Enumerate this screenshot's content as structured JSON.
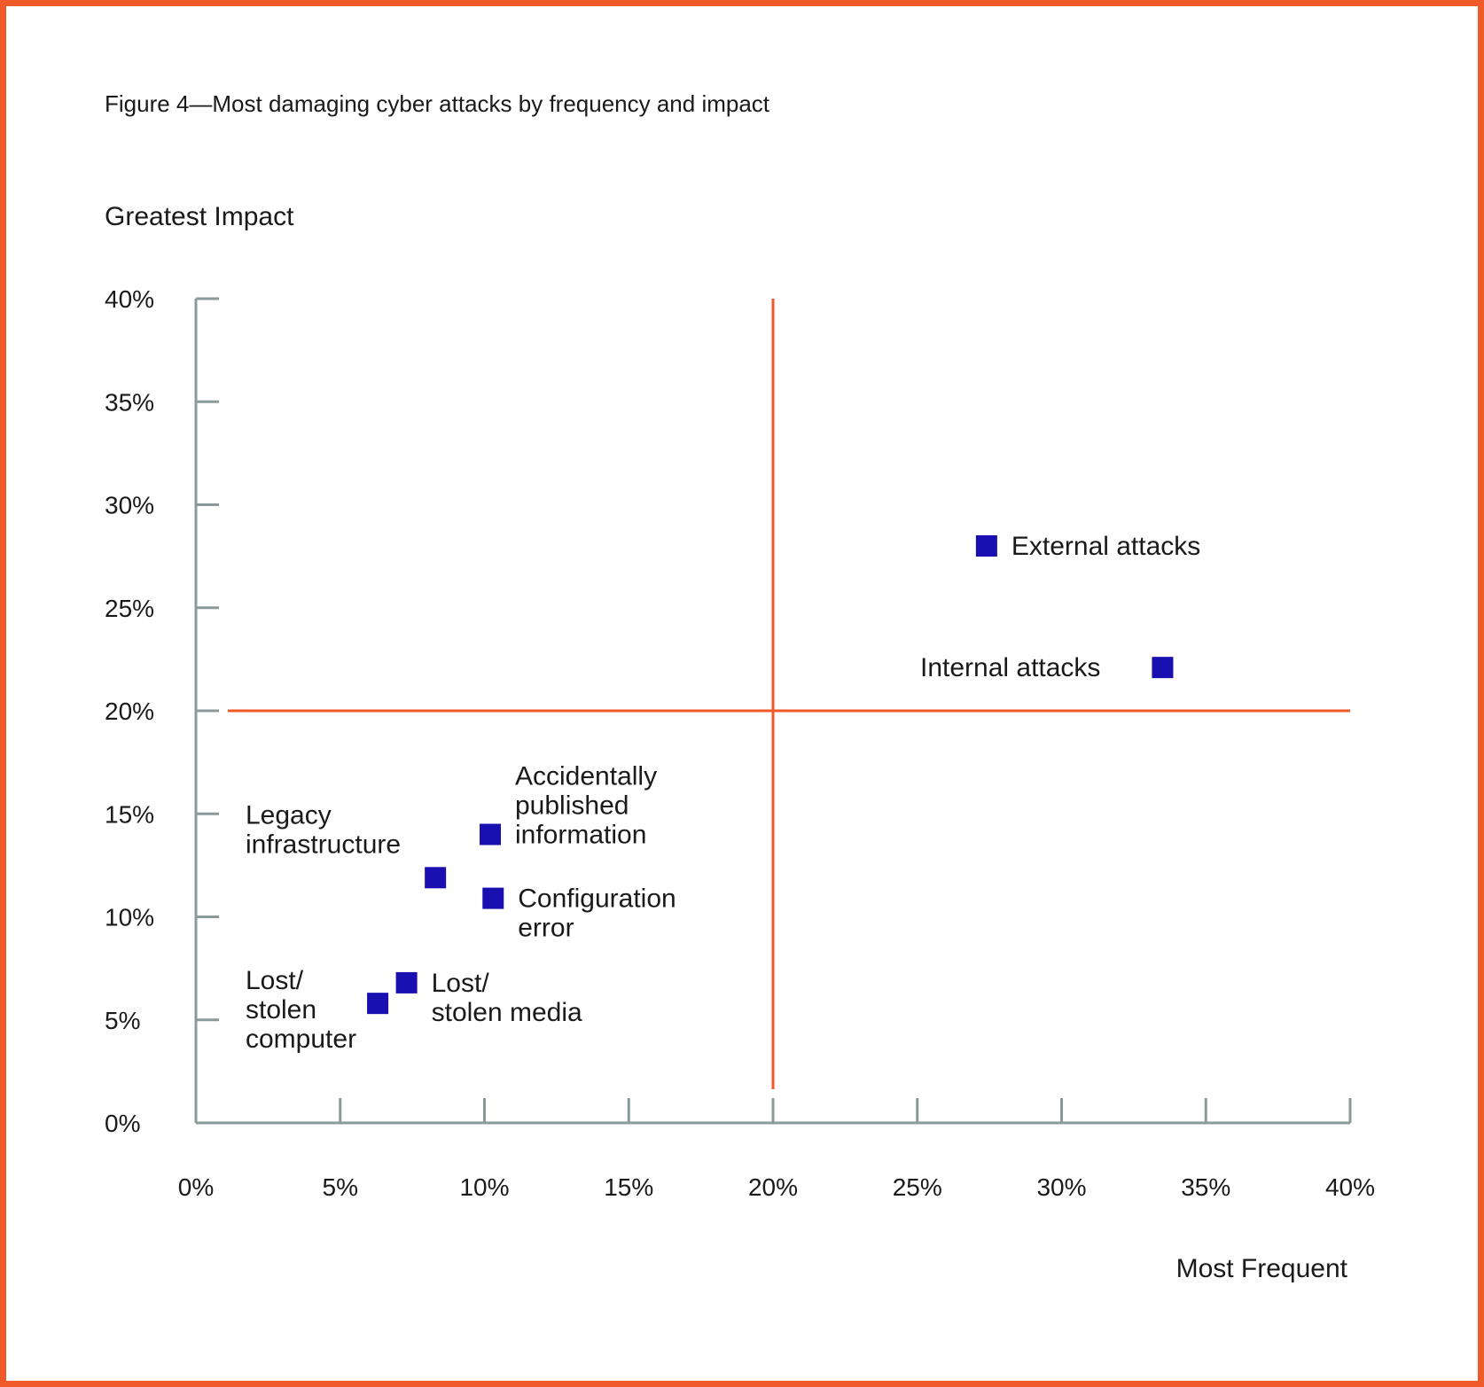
{
  "colors": {
    "border": "#f05a28",
    "axis": "#8a9a9a",
    "divider": "#f05a28",
    "marker": "#1a0fb0",
    "text": "#1a1a1a"
  },
  "chart_data": {
    "type": "scatter",
    "title": "Figure 4—Most damaging cyber attacks by frequency and impact",
    "xlabel": "Most Frequent",
    "ylabel": "Greatest Impact",
    "xlim": [
      0,
      40
    ],
    "ylim": [
      0,
      40
    ],
    "x_ticks": [
      0,
      5,
      10,
      15,
      20,
      25,
      30,
      35,
      40
    ],
    "y_ticks": [
      0,
      5,
      10,
      15,
      20,
      25,
      30,
      35,
      40
    ],
    "x_tick_labels": [
      "0%",
      "5%",
      "10%",
      "15%",
      "20%",
      "25%",
      "30%",
      "35%",
      "40%"
    ],
    "y_tick_labels": [
      "0%",
      "5%",
      "10%",
      "15%",
      "20%",
      "25%",
      "30%",
      "35%",
      "40%"
    ],
    "quadrant_lines": {
      "x": 20,
      "y": 20
    },
    "grid": false,
    "points": [
      {
        "label": [
          "External attacks"
        ],
        "x": 27.4,
        "y": 28.0,
        "label_side": "right"
      },
      {
        "label": [
          "Internal attacks"
        ],
        "x": 33.5,
        "y": 22.1,
        "label_side": "left"
      },
      {
        "label": [
          "Accidentally",
          "published",
          "information"
        ],
        "x": 10.2,
        "y": 14.0,
        "label_side": "right"
      },
      {
        "label": [
          "Legacy",
          "infrastructure"
        ],
        "x": 8.3,
        "y": 11.9,
        "label_side": "upper-left"
      },
      {
        "label": [
          "Configuration",
          "error"
        ],
        "x": 10.3,
        "y": 10.9,
        "label_side": "right"
      },
      {
        "label": [
          "Lost/",
          "stolen media"
        ],
        "x": 7.3,
        "y": 6.8,
        "label_side": "right"
      },
      {
        "label": [
          "Lost/",
          "stolen",
          "computer"
        ],
        "x": 6.3,
        "y": 5.8,
        "label_side": "left"
      }
    ]
  }
}
